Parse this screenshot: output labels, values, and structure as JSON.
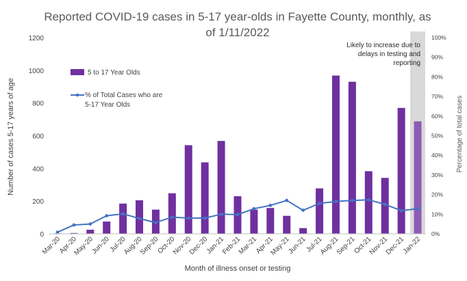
{
  "chart_data": {
    "type": "bar",
    "title": "Reported COVID-19 cases in 5-17 year-olds in Fayette County, monthly, as of 1/11/2022",
    "title_lines": [
      "Reported COVID-19 cases in 5-17 year-olds in Fayette County, monthly, as",
      "of 1/11/2022"
    ],
    "xlabel": "Month of illness onset or testing",
    "ylabel": "Number of cases 5-17 years of age",
    "y2label": "Percentage of total cases",
    "ylim": [
      0,
      1200
    ],
    "y2lim": [
      0,
      100
    ],
    "yticks": [
      "0",
      "200",
      "400",
      "600",
      "800",
      "1000",
      "1200"
    ],
    "y2ticks": [
      "0%",
      "10%",
      "20%",
      "30%",
      "40%",
      "50%",
      "60%",
      "70%",
      "80%",
      "90%",
      "100%"
    ],
    "categories": [
      "Mar-20",
      "Apr-20",
      "May-20",
      "Jun-20",
      "Jul-20",
      "Aug-20",
      "Sep-20",
      "Oct-20",
      "Nov-20",
      "Dec-20",
      "Jan-21",
      "Feb-21",
      "Mar-21",
      "Apr-21",
      "May-21",
      "Jun-21",
      "Jul-21",
      "Aug-21",
      "Sep-21",
      "Oct-21",
      "Nov-21",
      "Dec-21",
      "Jan-22"
    ],
    "series": [
      {
        "name": "5 to 17 Year Olds",
        "kind": "bar",
        "axis": "left",
        "color": "#7030A0",
        "values": [
          3,
          5,
          25,
          75,
          185,
          205,
          148,
          248,
          542,
          437,
          568,
          230,
          148,
          158,
          110,
          35,
          278,
          968,
          930,
          383,
          342,
          770,
          688
        ]
      },
      {
        "name": "% of Total Cases who are 5-17 Year Olds",
        "kind": "line",
        "axis": "right",
        "color": "#4472C4",
        "values": [
          0.8,
          4.5,
          5.0,
          9.2,
          10.2,
          7.8,
          5.7,
          8.5,
          8.0,
          8.0,
          10.0,
          9.8,
          12.8,
          14.5,
          17.0,
          12.0,
          15.5,
          16.5,
          17.0,
          17.3,
          15.0,
          11.8,
          12.8
        ]
      }
    ],
    "shaded_region": {
      "category": "Jan-22",
      "annotation_lines": [
        "Likely to increase due to",
        "delays in testing and",
        "reporting"
      ],
      "shade_color": "#D9D9D9",
      "bar_color": "#8E5BB5"
    },
    "legend_position": "upper-left",
    "grid": false
  }
}
